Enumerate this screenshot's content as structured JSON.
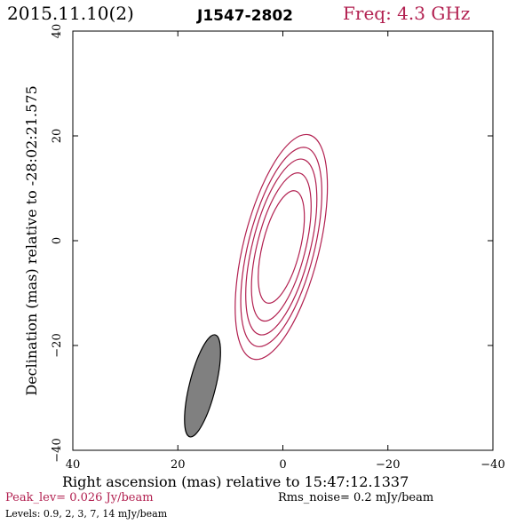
{
  "header": {
    "date": "2015.11.10(2)",
    "source": "J1547-2802",
    "frequency": "Freq: 4.3 GHz"
  },
  "chart_data": {
    "type": "contour",
    "xlabel": "Right ascension (mas) relative to 15:47:12.1337",
    "ylabel": "Declination (mas) relative to -28:02:21.575",
    "xlim": [
      40,
      -40
    ],
    "ylim": [
      -40,
      40
    ],
    "xticks": [
      40,
      20,
      0,
      -20,
      -40
    ],
    "yticks": [
      -40,
      -20,
      0,
      20,
      40
    ],
    "xtick_labels": [
      "40",
      "20",
      "0",
      "−20",
      "−40"
    ],
    "ytick_labels": [
      "−40",
      "−20",
      "0",
      "20",
      "40"
    ],
    "contour_color": "#b22050",
    "beam_color": "#808080",
    "contours": [
      {
        "level": 14,
        "center": [
          0.3,
          -1.2
        ],
        "a": 11.0,
        "b": 3.6,
        "pa_deg": 14
      },
      {
        "level": 7,
        "center": [
          0.3,
          -1.2
        ],
        "a": 14.5,
        "b": 4.6,
        "pa_deg": 14
      },
      {
        "level": 3,
        "center": [
          0.3,
          -1.2
        ],
        "a": 17.2,
        "b": 5.5,
        "pa_deg": 14
      },
      {
        "level": 2,
        "center": [
          0.3,
          -1.2
        ],
        "a": 19.5,
        "b": 6.3,
        "pa_deg": 14
      },
      {
        "level": 0.9,
        "center": [
          0.3,
          -1.2
        ],
        "a": 22.0,
        "b": 7.2,
        "pa_deg": 14
      }
    ],
    "beam": {
      "center": [
        15.3,
        -27.7
      ],
      "a": 10.0,
      "b": 2.5,
      "pa_deg": 14
    }
  },
  "footer": {
    "peak": "Peak_lev=  0.026 Jy/beam",
    "rms": "Rms_noise=   0.2 mJy/beam",
    "levels": "Levels: 0.9,    2,    3,    7,   14 mJy/beam"
  }
}
